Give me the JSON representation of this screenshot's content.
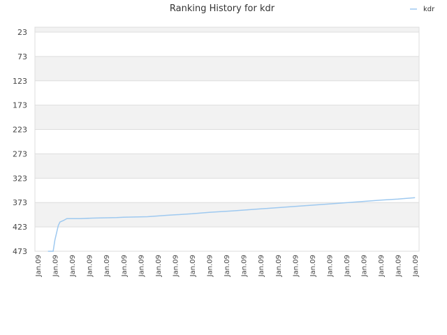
{
  "chart_data": {
    "type": "line",
    "title": "Ranking History for kdr",
    "xlabel": "",
    "ylabel": "",
    "y_reversed": true,
    "ylim": [
      473,
      13
    ],
    "y_ticks": [
      23,
      73,
      123,
      173,
      223,
      273,
      323,
      373,
      423,
      473
    ],
    "x_tick_labels": [
      "Jan.09",
      "Jan.09",
      "Jan.09",
      "Jan.09",
      "Jan.09",
      "Jan.09",
      "Jan.09",
      "Jan.09",
      "Jan.09",
      "Jan.09",
      "Jan.09",
      "Jan.09",
      "Jan.09",
      "Jan.09",
      "Jan.09",
      "Jan.09",
      "Jan.09",
      "Jan.09",
      "Jan.09",
      "Jan.09",
      "Jan.09",
      "Jan.09",
      "Jan.09"
    ],
    "grid": true,
    "legend_position": "top-right",
    "series": [
      {
        "name": "kdr",
        "color": "#9ec9f0",
        "x": [
          0.6,
          0.9,
          1.0,
          1.2,
          1.3,
          1.5,
          1.7,
          2.5,
          3.2,
          4.6,
          5.0,
          6.4,
          7.6,
          9.0,
          10.0,
          11.4,
          13.0,
          15.0,
          17.0,
          18.5,
          20.0,
          21.0,
          22.0
        ],
        "values": [
          473,
          473,
          450,
          420,
          413,
          410,
          406,
          406,
          405,
          404,
          403,
          402,
          399,
          396,
          393,
          390,
          386,
          381,
          376,
          372,
          368,
          366,
          363
        ]
      }
    ]
  }
}
